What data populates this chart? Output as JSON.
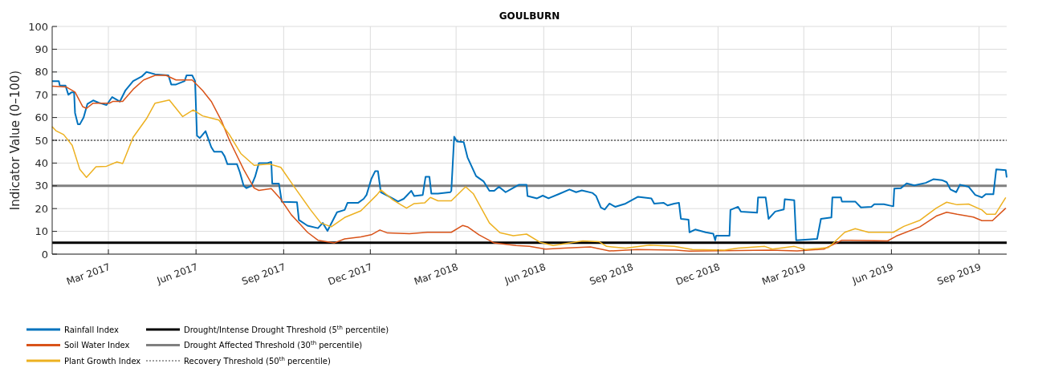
{
  "chart_data": {
    "type": "line",
    "title": "GOULBURN",
    "ylabel": "Indicator Value (0–100)",
    "xlim": [
      "2017-01-01",
      "2019-09-30"
    ],
    "xticks": [
      {
        "value": "2017-03-01",
        "label": "Mar 2017"
      },
      {
        "value": "2017-06-01",
        "label": "Jun 2017"
      },
      {
        "value": "2017-09-01",
        "label": "Sep 2017"
      },
      {
        "value": "2017-12-01",
        "label": "Dec 2017"
      },
      {
        "value": "2018-03-01",
        "label": "Mar 2018"
      },
      {
        "value": "2018-06-01",
        "label": "Jun 2018"
      },
      {
        "value": "2018-09-01",
        "label": "Sep 2018"
      },
      {
        "value": "2018-12-01",
        "label": "Dec 2018"
      },
      {
        "value": "2019-03-01",
        "label": "Mar 2019"
      },
      {
        "value": "2019-06-01",
        "label": "Jun 2019"
      },
      {
        "value": "2019-09-01",
        "label": "Sep 2019"
      }
    ],
    "ylim": [
      0,
      100
    ],
    "yticks": [
      0,
      10,
      20,
      30,
      40,
      50,
      60,
      70,
      80,
      90,
      100
    ],
    "grid": true,
    "legend": "bottom left",
    "line_style": "solid",
    "ref_lines": [
      {
        "axis": "y",
        "value": 5,
        "label": "Drought/Intense Drought Threshold (5$^{th}$ percentile)",
        "color": "#000000",
        "line_style": "solid"
      },
      {
        "axis": "y",
        "value": 30,
        "label": "Drought Affected Threshold (30$^{th}$ percentile)",
        "color": "#808080",
        "line_style": "solid"
      },
      {
        "axis": "y",
        "value": 50,
        "label": "Recovery Threshold (50$^{th}$ percentile)",
        "color": "#808080",
        "line_style": "dotted"
      }
    ],
    "series": [
      {
        "name": "Rainfall Index",
        "color": "#0072bd",
        "x": [
          "2017-01-01",
          "2017-01-08",
          "2017-01-09",
          "2017-01-15",
          "2017-01-18",
          "2017-01-21",
          "2017-01-24",
          "2017-01-25",
          "2017-01-28",
          "2017-01-30",
          "2017-02-03",
          "2017-02-07",
          "2017-02-13",
          "2017-02-19",
          "2017-02-27",
          "2017-03-05",
          "2017-03-13",
          "2017-03-19",
          "2017-03-27",
          "2017-04-05",
          "2017-04-10",
          "2017-04-19",
          "2017-05-03",
          "2017-05-06",
          "2017-05-11",
          "2017-05-20",
          "2017-05-22",
          "2017-05-28",
          "2017-05-31",
          "2017-06-02",
          "2017-06-05",
          "2017-06-11",
          "2017-06-17",
          "2017-06-20",
          "2017-06-28",
          "2017-07-01",
          "2017-07-04",
          "2017-07-14",
          "2017-07-17",
          "2017-07-21",
          "2017-07-24",
          "2017-07-29",
          "2017-08-02",
          "2017-08-06",
          "2017-08-15",
          "2017-08-19",
          "2017-08-20",
          "2017-08-27",
          "2017-08-30",
          "2017-09-15",
          "2017-09-17",
          "2017-09-26",
          "2017-10-07",
          "2017-10-12",
          "2017-10-17",
          "2017-10-27",
          "2017-11-04",
          "2017-11-07",
          "2017-11-18",
          "2017-11-24",
          "2017-11-27",
          "2017-12-02",
          "2017-12-06",
          "2017-12-09",
          "2017-12-12",
          "2017-12-25",
          "2017-12-30",
          "2018-01-05",
          "2018-01-13",
          "2018-01-16",
          "2018-01-25",
          "2018-01-28",
          "2018-02-01",
          "2018-02-03",
          "2018-02-10",
          "2018-02-23",
          "2018-02-24",
          "2018-02-27",
          "2018-03-02",
          "2018-03-09",
          "2018-03-13",
          "2018-03-22",
          "2018-03-30",
          "2018-04-05",
          "2018-04-10",
          "2018-04-15",
          "2018-04-22",
          "2018-04-27",
          "2018-05-06",
          "2018-05-14",
          "2018-05-15",
          "2018-05-25",
          "2018-05-31",
          "2018-06-06",
          "2018-06-17",
          "2018-06-28",
          "2018-07-05",
          "2018-07-11",
          "2018-07-22",
          "2018-07-26",
          "2018-07-31",
          "2018-08-04",
          "2018-08-09",
          "2018-08-15",
          "2018-08-26",
          "2018-09-08",
          "2018-09-22",
          "2018-09-25",
          "2018-10-05",
          "2018-10-09",
          "2018-10-16",
          "2018-10-21",
          "2018-10-23",
          "2018-10-31",
          "2018-11-01",
          "2018-11-07",
          "2018-11-18",
          "2018-11-26",
          "2018-11-28",
          "2018-11-29",
          "2018-12-13",
          "2018-12-14",
          "2018-12-22",
          "2018-12-25",
          "2019-01-11",
          "2019-01-12",
          "2019-01-20",
          "2019-01-23",
          "2019-01-30",
          "2019-02-08",
          "2019-02-09",
          "2019-02-19",
          "2019-02-21",
          "2019-03-15",
          "2019-03-19",
          "2019-03-30",
          "2019-03-31",
          "2019-04-09",
          "2019-04-10",
          "2019-04-24",
          "2019-04-30",
          "2019-05-11",
          "2019-05-14",
          "2019-05-24",
          "2019-06-03",
          "2019-06-04",
          "2019-06-11",
          "2019-06-17",
          "2019-06-25",
          "2019-07-07",
          "2019-07-15",
          "2019-07-24",
          "2019-07-29",
          "2019-08-02",
          "2019-08-08",
          "2019-08-12",
          "2019-08-21",
          "2019-08-28",
          "2019-09-04",
          "2019-09-08",
          "2019-09-16",
          "2019-09-19",
          "2019-09-29",
          "2019-09-30"
        ],
        "values": [
          76,
          76,
          74,
          74,
          70,
          71,
          71,
          62,
          57,
          57,
          60,
          66,
          67.5,
          66.5,
          65.5,
          69,
          67,
          72,
          76,
          78,
          80,
          79,
          78.5,
          74.5,
          74.5,
          76,
          78.5,
          78.5,
          76,
          52,
          51,
          54,
          47,
          45,
          45,
          43,
          39.5,
          39.5,
          36,
          30,
          29,
          30,
          34,
          40,
          40,
          40.5,
          31,
          31,
          23,
          22.8,
          15,
          12.5,
          11.4,
          13.7,
          10.2,
          18.4,
          19.4,
          22.5,
          22.5,
          24.3,
          26,
          33,
          36.4,
          36.4,
          27.2,
          24.3,
          23.1,
          24.3,
          27.8,
          25.5,
          26,
          34,
          34,
          26.6,
          26.6,
          27.2,
          27.8,
          51.6,
          49.5,
          49.2,
          42.5,
          34.3,
          31.9,
          27.8,
          27.8,
          29.6,
          27.2,
          28.4,
          30.5,
          30.5,
          25.5,
          24.5,
          25.7,
          24.5,
          26.4,
          28.4,
          27.2,
          28,
          26.9,
          25.5,
          20.5,
          19.6,
          22.2,
          20.8,
          22.2,
          25.2,
          24.5,
          22.2,
          22.5,
          21.4,
          22.2,
          22.5,
          15.5,
          15.1,
          9.6,
          10.8,
          9.6,
          9,
          6.1,
          8.1,
          8.1,
          19.4,
          20.8,
          18.7,
          18.2,
          24.9,
          24.9,
          15.5,
          18.7,
          19.6,
          24.1,
          23.7,
          6.1,
          6.7,
          15.5,
          16.1,
          24.9,
          24.9,
          23.1,
          23.1,
          20.5,
          20.8,
          21.9,
          21.9,
          21,
          28.8,
          29,
          31.1,
          30.2,
          31.3,
          32.9,
          32.5,
          31.6,
          28.4,
          27.2,
          30.5,
          29.6,
          26,
          24.9,
          26.3,
          26.3,
          37.2,
          36.9,
          33.7
        ]
      },
      {
        "name": "Soil Water Index",
        "color": "#d95319",
        "x": [
          "2017-01-01",
          "2017-01-16",
          "2017-01-25",
          "2017-02-02",
          "2017-02-06",
          "2017-02-13",
          "2017-03-02",
          "2017-03-06",
          "2017-03-16",
          "2017-03-27",
          "2017-04-07",
          "2017-04-19",
          "2017-04-30",
          "2017-05-11",
          "2017-05-28",
          "2017-06-08",
          "2017-06-17",
          "2017-06-28",
          "2017-07-06",
          "2017-07-21",
          "2017-08-01",
          "2017-08-06",
          "2017-08-19",
          "2017-08-26",
          "2017-08-29",
          "2017-09-09",
          "2017-09-17",
          "2017-09-26",
          "2017-10-07",
          "2017-10-24",
          "2017-11-04",
          "2017-11-21",
          "2017-12-02",
          "2017-12-11",
          "2017-12-19",
          "2018-01-11",
          "2018-01-30",
          "2018-02-24",
          "2018-03-08",
          "2018-03-13",
          "2018-03-25",
          "2018-04-10",
          "2018-05-03",
          "2018-05-17",
          "2018-06-03",
          "2018-06-22",
          "2018-07-20",
          "2018-08-09",
          "2018-09-07",
          "2018-10-18",
          "2018-11-01",
          "2019-01-25",
          "2019-02-22",
          "2019-03-22",
          "2019-04-10",
          "2019-04-19",
          "2019-05-28",
          "2019-06-06",
          "2019-07-01",
          "2019-07-18",
          "2019-07-29",
          "2019-08-09",
          "2019-08-26",
          "2019-09-04",
          "2019-09-15",
          "2019-09-29"
        ],
        "values": [
          73.8,
          73.4,
          71.2,
          64.8,
          64,
          66.3,
          66.3,
          67.1,
          67.1,
          72.4,
          76.5,
          78.5,
          78.6,
          76.5,
          76.5,
          71.8,
          67.1,
          58.3,
          50.1,
          37.2,
          29,
          28,
          28.8,
          25.5,
          24.1,
          17.3,
          13.7,
          9.6,
          6.1,
          4.9,
          6.7,
          7.6,
          8.5,
          10.6,
          9.3,
          9,
          9.6,
          9.6,
          12.6,
          12,
          8.5,
          4.9,
          3.8,
          3.4,
          2.2,
          2.6,
          3.2,
          1.4,
          2,
          1.8,
          1.3,
          1.8,
          1.4,
          2.2,
          6.1,
          6.1,
          5.8,
          7.9,
          12,
          16.7,
          18.4,
          17.5,
          16.3,
          14.7,
          14.7,
          20.2
        ]
      },
      {
        "name": "Plant Growth Index",
        "color": "#edb120",
        "x": [
          "2017-01-01",
          "2017-01-05",
          "2017-01-13",
          "2017-01-22",
          "2017-01-30",
          "2017-02-06",
          "2017-02-16",
          "2017-02-27",
          "2017-03-10",
          "2017-03-16",
          "2017-03-27",
          "2017-04-10",
          "2017-04-19",
          "2017-05-04",
          "2017-05-18",
          "2017-05-29",
          "2017-06-08",
          "2017-06-25",
          "2017-07-06",
          "2017-07-18",
          "2017-08-01",
          "2017-08-17",
          "2017-08-29",
          "2017-09-12",
          "2017-09-29",
          "2017-10-10",
          "2017-10-21",
          "2017-11-04",
          "2017-11-21",
          "2017-12-08",
          "2017-12-12",
          "2017-12-25",
          "2018-01-08",
          "2018-01-16",
          "2018-01-27",
          "2018-02-02",
          "2018-02-10",
          "2018-02-24",
          "2018-03-11",
          "2018-03-19",
          "2018-04-05",
          "2018-04-16",
          "2018-04-30",
          "2018-05-14",
          "2018-05-28",
          "2018-06-11",
          "2018-07-12",
          "2018-07-29",
          "2018-08-06",
          "2018-08-26",
          "2018-09-20",
          "2018-10-16",
          "2018-11-04",
          "2018-12-08",
          "2018-12-22",
          "2019-01-19",
          "2019-01-27",
          "2019-02-19",
          "2019-03-02",
          "2019-03-27",
          "2019-04-13",
          "2019-04-24",
          "2019-05-08",
          "2019-06-03",
          "2019-06-14",
          "2019-07-01",
          "2019-07-18",
          "2019-07-29",
          "2019-08-09",
          "2019-08-21",
          "2019-09-04",
          "2019-09-09",
          "2019-09-18",
          "2019-09-29"
        ],
        "values": [
          56,
          54.2,
          52.5,
          47.8,
          37.2,
          33.7,
          38.4,
          38.6,
          40.5,
          39.8,
          51.3,
          59.5,
          66.3,
          67.7,
          60.4,
          63.3,
          60.7,
          58.9,
          52.5,
          44.2,
          39,
          39.6,
          38.1,
          29.6,
          19.6,
          13.7,
          12,
          16.1,
          19,
          26.1,
          28.2,
          23.7,
          20.2,
          22.2,
          22.5,
          24.9,
          23.4,
          23.4,
          29.6,
          26.6,
          13.7,
          9.4,
          8.1,
          8.8,
          5.2,
          3.8,
          5.8,
          5.5,
          3.4,
          2.6,
          4,
          3.4,
          2,
          1.8,
          2.6,
          3.4,
          2.2,
          3.4,
          2,
          2.9,
          9.6,
          11.2,
          9.6,
          9.6,
          12.2,
          14.9,
          20.2,
          22.8,
          21.7,
          22,
          19.4,
          17.5,
          17.5,
          24.9
        ]
      }
    ]
  }
}
